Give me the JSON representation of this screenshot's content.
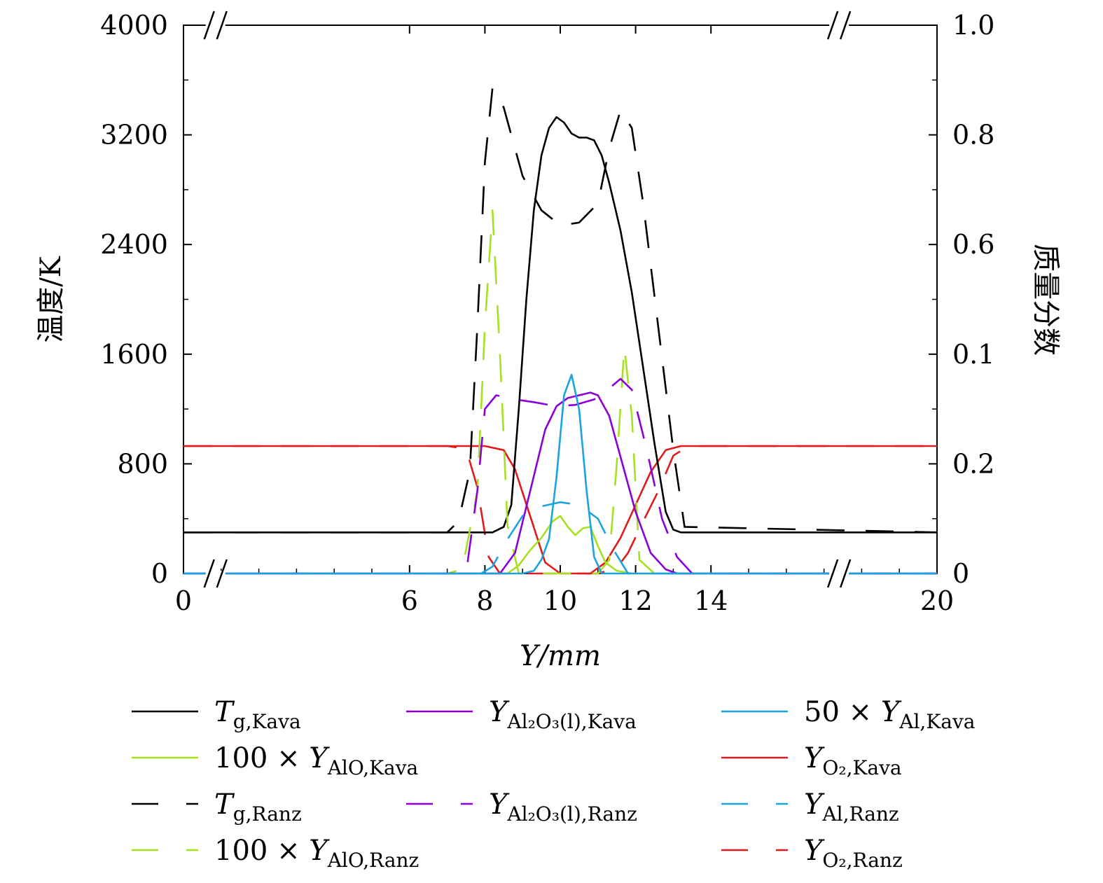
{
  "chart_data": {
    "type": "line",
    "xlabel": "Y/mm",
    "ylabel_left": "温度/K",
    "ylabel_right": "质量分数",
    "x_axis": {
      "range": [
        0,
        20
      ],
      "broken": true,
      "tick_labels": [
        "0",
        "6",
        "8",
        "10",
        "12",
        "14",
        "20"
      ],
      "tick_positions": [
        0,
        6,
        8,
        10,
        12,
        14,
        20
      ]
    },
    "y_left": {
      "range": [
        0,
        4000
      ],
      "ticks": [
        0,
        800,
        1600,
        2400,
        3200,
        4000
      ],
      "tick_labels": [
        "0",
        "800",
        "1600",
        "2400",
        "3200",
        "4000"
      ]
    },
    "y_right": {
      "display_ticks": [
        "0",
        "0.2",
        "0.1",
        "0.6",
        "0.8",
        "1.0"
      ]
    },
    "legend": [
      {
        "key": "Tg_Kava",
        "prefix": "",
        "sym": "T",
        "sub": "g,Kava",
        "color": "#000000",
        "dashed": false
      },
      {
        "key": "Y_Al2O3_Kava",
        "prefix": "",
        "sym": "Y",
        "sub": "Al₂O₃(l),Kava",
        "color": "#8b00d9",
        "dashed": false
      },
      {
        "key": "Y_Al_Kava",
        "prefix": "50 × ",
        "sym": "Y",
        "sub": "Al,Kava",
        "color": "#1ba3e0",
        "dashed": false
      },
      {
        "key": "Y_AlO_Kava",
        "prefix": "100 × ",
        "sym": "Y",
        "sub": "AlO,Kava",
        "color": "#a6e022",
        "dashed": false
      },
      {
        "key": "Y_O2_Kava",
        "prefix": "",
        "sym": "Y",
        "sub": "O₂,Kava",
        "color": "#e01b1b",
        "dashed": false
      },
      {
        "key": "Tg_Ranz",
        "prefix": "",
        "sym": "T",
        "sub": "g,Ranz",
        "color": "#000000",
        "dashed": true
      },
      {
        "key": "Y_Al2O3_Ranz",
        "prefix": "",
        "sym": "Y",
        "sub": "Al₂O₃(l),Ranz",
        "color": "#8b00d9",
        "dashed": true
      },
      {
        "key": "Y_Al_Ranz",
        "prefix": "",
        "sym": "Y",
        "sub": "Al,Ranz",
        "color": "#1ba3e0",
        "dashed": true
      },
      {
        "key": "Y_AlO_Ranz",
        "prefix": "100 × ",
        "sym": "Y",
        "sub": "AlO,Ranz",
        "color": "#a6e022",
        "dashed": true
      },
      {
        "key": "Y_O2_Ranz",
        "prefix": "",
        "sym": "Y",
        "sub": "O₂,Ranz",
        "color": "#e01b1b",
        "dashed": true
      }
    ],
    "series": [
      {
        "key": "Y_O2_Kava",
        "color": "#e01b1b",
        "dashed": false,
        "x": [
          0,
          7,
          8,
          8.5,
          8.8,
          9.2,
          9.6,
          10,
          10.4,
          10.8,
          11.2,
          11.6,
          12,
          12.4,
          12.8,
          13.2,
          20
        ],
        "y": [
          930,
          930,
          930,
          900,
          760,
          420,
          80,
          0,
          0,
          0,
          80,
          260,
          500,
          740,
          900,
          930,
          930
        ]
      },
      {
        "key": "Y_O2_Ranz",
        "color": "#e01b1b",
        "dashed": true,
        "x": [
          0,
          7,
          7.5,
          7.8,
          8.1,
          8.4,
          9,
          10,
          11,
          11.5,
          11.8,
          12.2,
          12.6,
          13.0,
          13.4,
          20
        ],
        "y": [
          930,
          930,
          910,
          630,
          120,
          0,
          0,
          0,
          0,
          40,
          150,
          380,
          600,
          860,
          930,
          930
        ]
      },
      {
        "key": "Tg_Kava",
        "color": "#000000",
        "dashed": false,
        "x": [
          0,
          8.2,
          8.5,
          8.7,
          8.9,
          9.1,
          9.3,
          9.5,
          9.7,
          9.9,
          10.1,
          10.3,
          10.5,
          10.7,
          10.9,
          11.1,
          11.3,
          11.6,
          11.9,
          12.2,
          12.5,
          12.8,
          13.0,
          13.2,
          20
        ],
        "y": [
          300,
          300,
          340,
          500,
          1200,
          2000,
          2650,
          3050,
          3250,
          3330,
          3290,
          3210,
          3180,
          3180,
          3160,
          3050,
          2850,
          2500,
          2050,
          1500,
          950,
          450,
          320,
          300,
          300
        ]
      },
      {
        "key": "Tg_Ranz",
        "color": "#000000",
        "dashed": true,
        "x": [
          0,
          7,
          7.3,
          7.6,
          7.8,
          8.0,
          8.2,
          8.5,
          9.0,
          9.5,
          10.0,
          10.5,
          11.0,
          11.3,
          11.6,
          11.9,
          12.2,
          12.6,
          13.0,
          13.3,
          20
        ],
        "y": [
          300,
          300,
          380,
          750,
          1800,
          3000,
          3540,
          3400,
          2900,
          2650,
          2540,
          2560,
          2700,
          3100,
          3380,
          3250,
          2700,
          1800,
          900,
          340,
          300
        ]
      },
      {
        "key": "Y_AlO_Ranz",
        "color": "#a6e022",
        "dashed": true,
        "x": [
          0,
          7,
          7.4,
          7.8,
          8.0,
          8.2,
          8.4,
          8.6,
          8.9,
          9.2,
          10,
          11.0,
          11.3,
          11.5,
          11.7,
          11.9,
          12.1,
          12.5,
          20
        ],
        "y": [
          0,
          0,
          30,
          600,
          1800,
          2650,
          1600,
          350,
          0,
          0,
          0,
          0,
          100,
          800,
          1650,
          1150,
          100,
          0,
          0
        ]
      },
      {
        "key": "Y_AlO_Kava",
        "color": "#a6e022",
        "dashed": false,
        "x": [
          0,
          8.6,
          8.9,
          9.2,
          9.5,
          9.8,
          10.0,
          10.2,
          10.4,
          10.6,
          10.8,
          11.0,
          11.2,
          11.5,
          11.9,
          20
        ],
        "y": [
          0,
          0,
          60,
          170,
          260,
          380,
          420,
          340,
          280,
          330,
          340,
          200,
          80,
          20,
          0,
          0
        ]
      },
      {
        "key": "Y_Al2O3_Kava",
        "color": "#8b00d9",
        "dashed": false,
        "x": [
          0,
          8.4,
          8.8,
          9.2,
          9.6,
          9.9,
          10.2,
          10.5,
          10.8,
          11.0,
          11.3,
          11.6,
          12.0,
          12.4,
          12.8,
          13.1,
          20
        ],
        "y": [
          0,
          0,
          150,
          600,
          1050,
          1220,
          1280,
          1300,
          1320,
          1300,
          1150,
          850,
          450,
          150,
          30,
          0,
          0
        ]
      },
      {
        "key": "Y_Al2O3_Ranz",
        "color": "#8b00d9",
        "dashed": true,
        "x": [
          0,
          7.5,
          7.8,
          8.0,
          8.3,
          8.8,
          9.3,
          9.9,
          10.4,
          10.9,
          11.3,
          11.6,
          11.9,
          12.3,
          12.7,
          13.1,
          13.5,
          20
        ],
        "y": [
          0,
          0,
          600,
          1200,
          1300,
          1270,
          1250,
          1220,
          1230,
          1270,
          1350,
          1420,
          1340,
          900,
          400,
          120,
          0,
          0
        ]
      },
      {
        "key": "Y_Al_Kava",
        "color": "#1ba3e0",
        "dashed": false,
        "x": [
          0,
          9.0,
          9.3,
          9.5,
          9.7,
          9.9,
          10.1,
          10.3,
          10.5,
          10.7,
          10.9,
          11.1,
          20
        ],
        "y": [
          0,
          0,
          20,
          100,
          250,
          700,
          1300,
          1450,
          1200,
          600,
          120,
          0,
          0
        ]
      },
      {
        "key": "Y_Al_Ranz",
        "color": "#1ba3e0",
        "dashed": true,
        "x": [
          0,
          7.9,
          8.2,
          8.6,
          9.0,
          9.5,
          10.0,
          10.5,
          11.0,
          11.4,
          11.8,
          12.2,
          20
        ],
        "y": [
          0,
          0,
          50,
          250,
          420,
          490,
          520,
          500,
          400,
          180,
          0,
          0,
          0
        ]
      }
    ]
  }
}
